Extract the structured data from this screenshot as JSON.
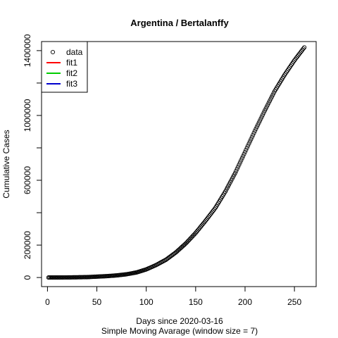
{
  "chart_data": {
    "type": "scatter",
    "title": "Argentina / Bertalanffy",
    "xlabel": "Days since 2020-03-16",
    "xlabel_sub": "Simple Moving Avarage (window size = 7)",
    "ylabel": "Cumulative Cases",
    "xlim": [
      -6,
      272
    ],
    "ylim": [
      -56000,
      1456000
    ],
    "x_ticks": [
      0,
      50,
      100,
      150,
      200,
      250
    ],
    "x_tick_labels": [
      "0",
      "50",
      "100",
      "150",
      "200",
      "250"
    ],
    "y_ticks": [
      0,
      200000,
      400000,
      600000,
      800000,
      1000000,
      1200000,
      1400000
    ],
    "y_tick_labels": [
      "0",
      "200000",
      "",
      "600000",
      "",
      "1000000",
      "",
      "1400000"
    ],
    "grid": false,
    "legend_position": "top-left",
    "legend": [
      {
        "label": "data",
        "kind": "point",
        "color": "#000000"
      },
      {
        "label": "fit1",
        "kind": "line",
        "color": "#ff0000"
      },
      {
        "label": "fit2",
        "kind": "line",
        "color": "#00cd00"
      },
      {
        "label": "fit3",
        "kind": "line",
        "color": "#0000cd"
      }
    ],
    "series": [
      {
        "name": "data",
        "marker": "open-circle",
        "x_range": [
          1,
          260
        ],
        "anchors": [
          [
            1,
            50
          ],
          [
            20,
            500
          ],
          [
            40,
            2500
          ],
          [
            60,
            8500
          ],
          [
            70,
            13000
          ],
          [
            80,
            20000
          ],
          [
            90,
            31000
          ],
          [
            100,
            50000
          ],
          [
            110,
            77000
          ],
          [
            120,
            110000
          ],
          [
            130,
            155000
          ],
          [
            140,
            210000
          ],
          [
            150,
            275000
          ],
          [
            160,
            350000
          ],
          [
            170,
            430000
          ],
          [
            180,
            530000
          ],
          [
            190,
            645000
          ],
          [
            200,
            775000
          ],
          [
            210,
            905000
          ],
          [
            220,
            1030000
          ],
          [
            230,
            1150000
          ],
          [
            240,
            1250000
          ],
          [
            250,
            1340000
          ],
          [
            260,
            1420000
          ]
        ]
      }
    ]
  }
}
